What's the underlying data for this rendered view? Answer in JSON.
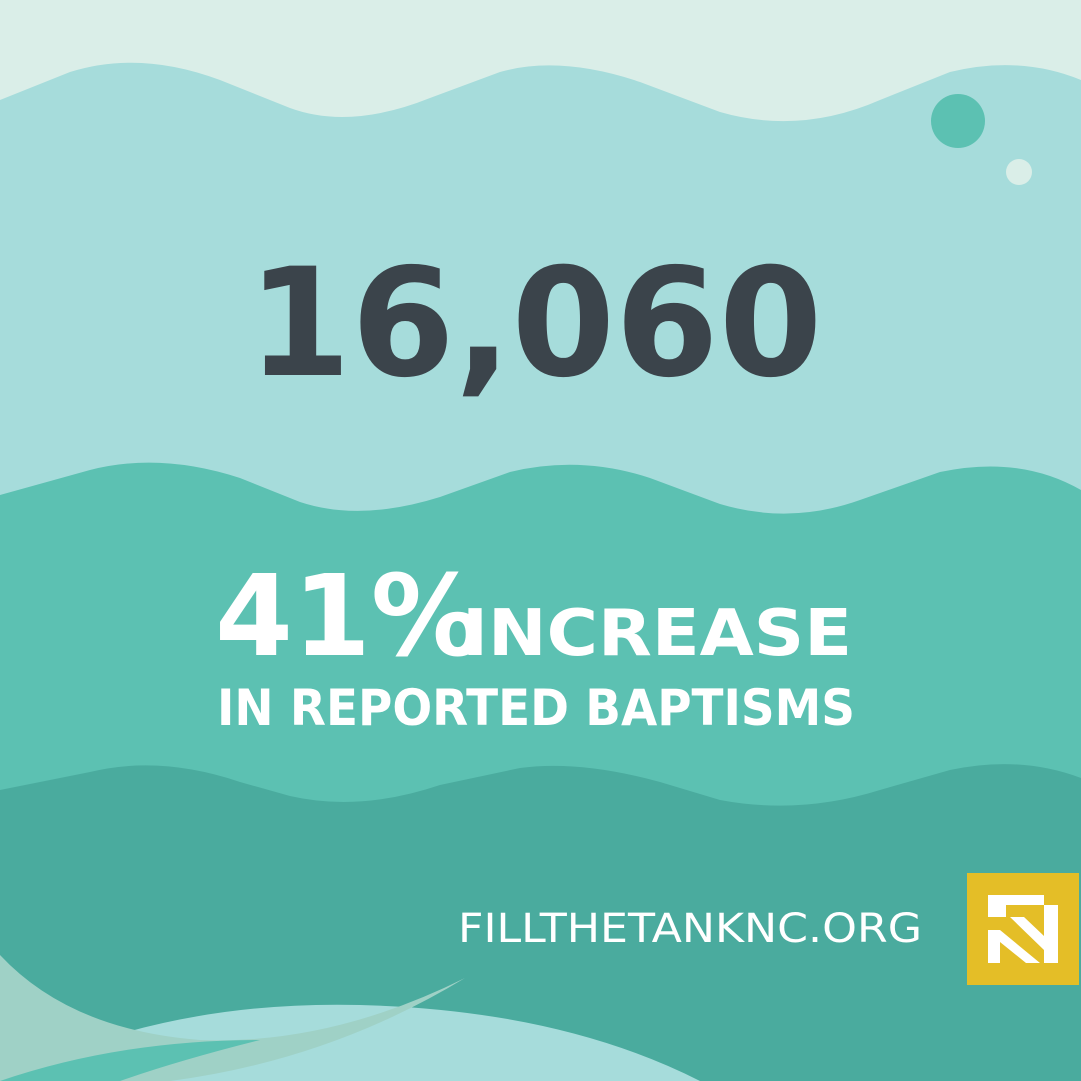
{
  "headline": {
    "number": "16,060"
  },
  "stat": {
    "percent": "41%",
    "label": "INCREASE",
    "detail": "IN REPORTED BAPTISMS"
  },
  "footer": {
    "url": "FILLTHETANKNC.ORG"
  }
}
